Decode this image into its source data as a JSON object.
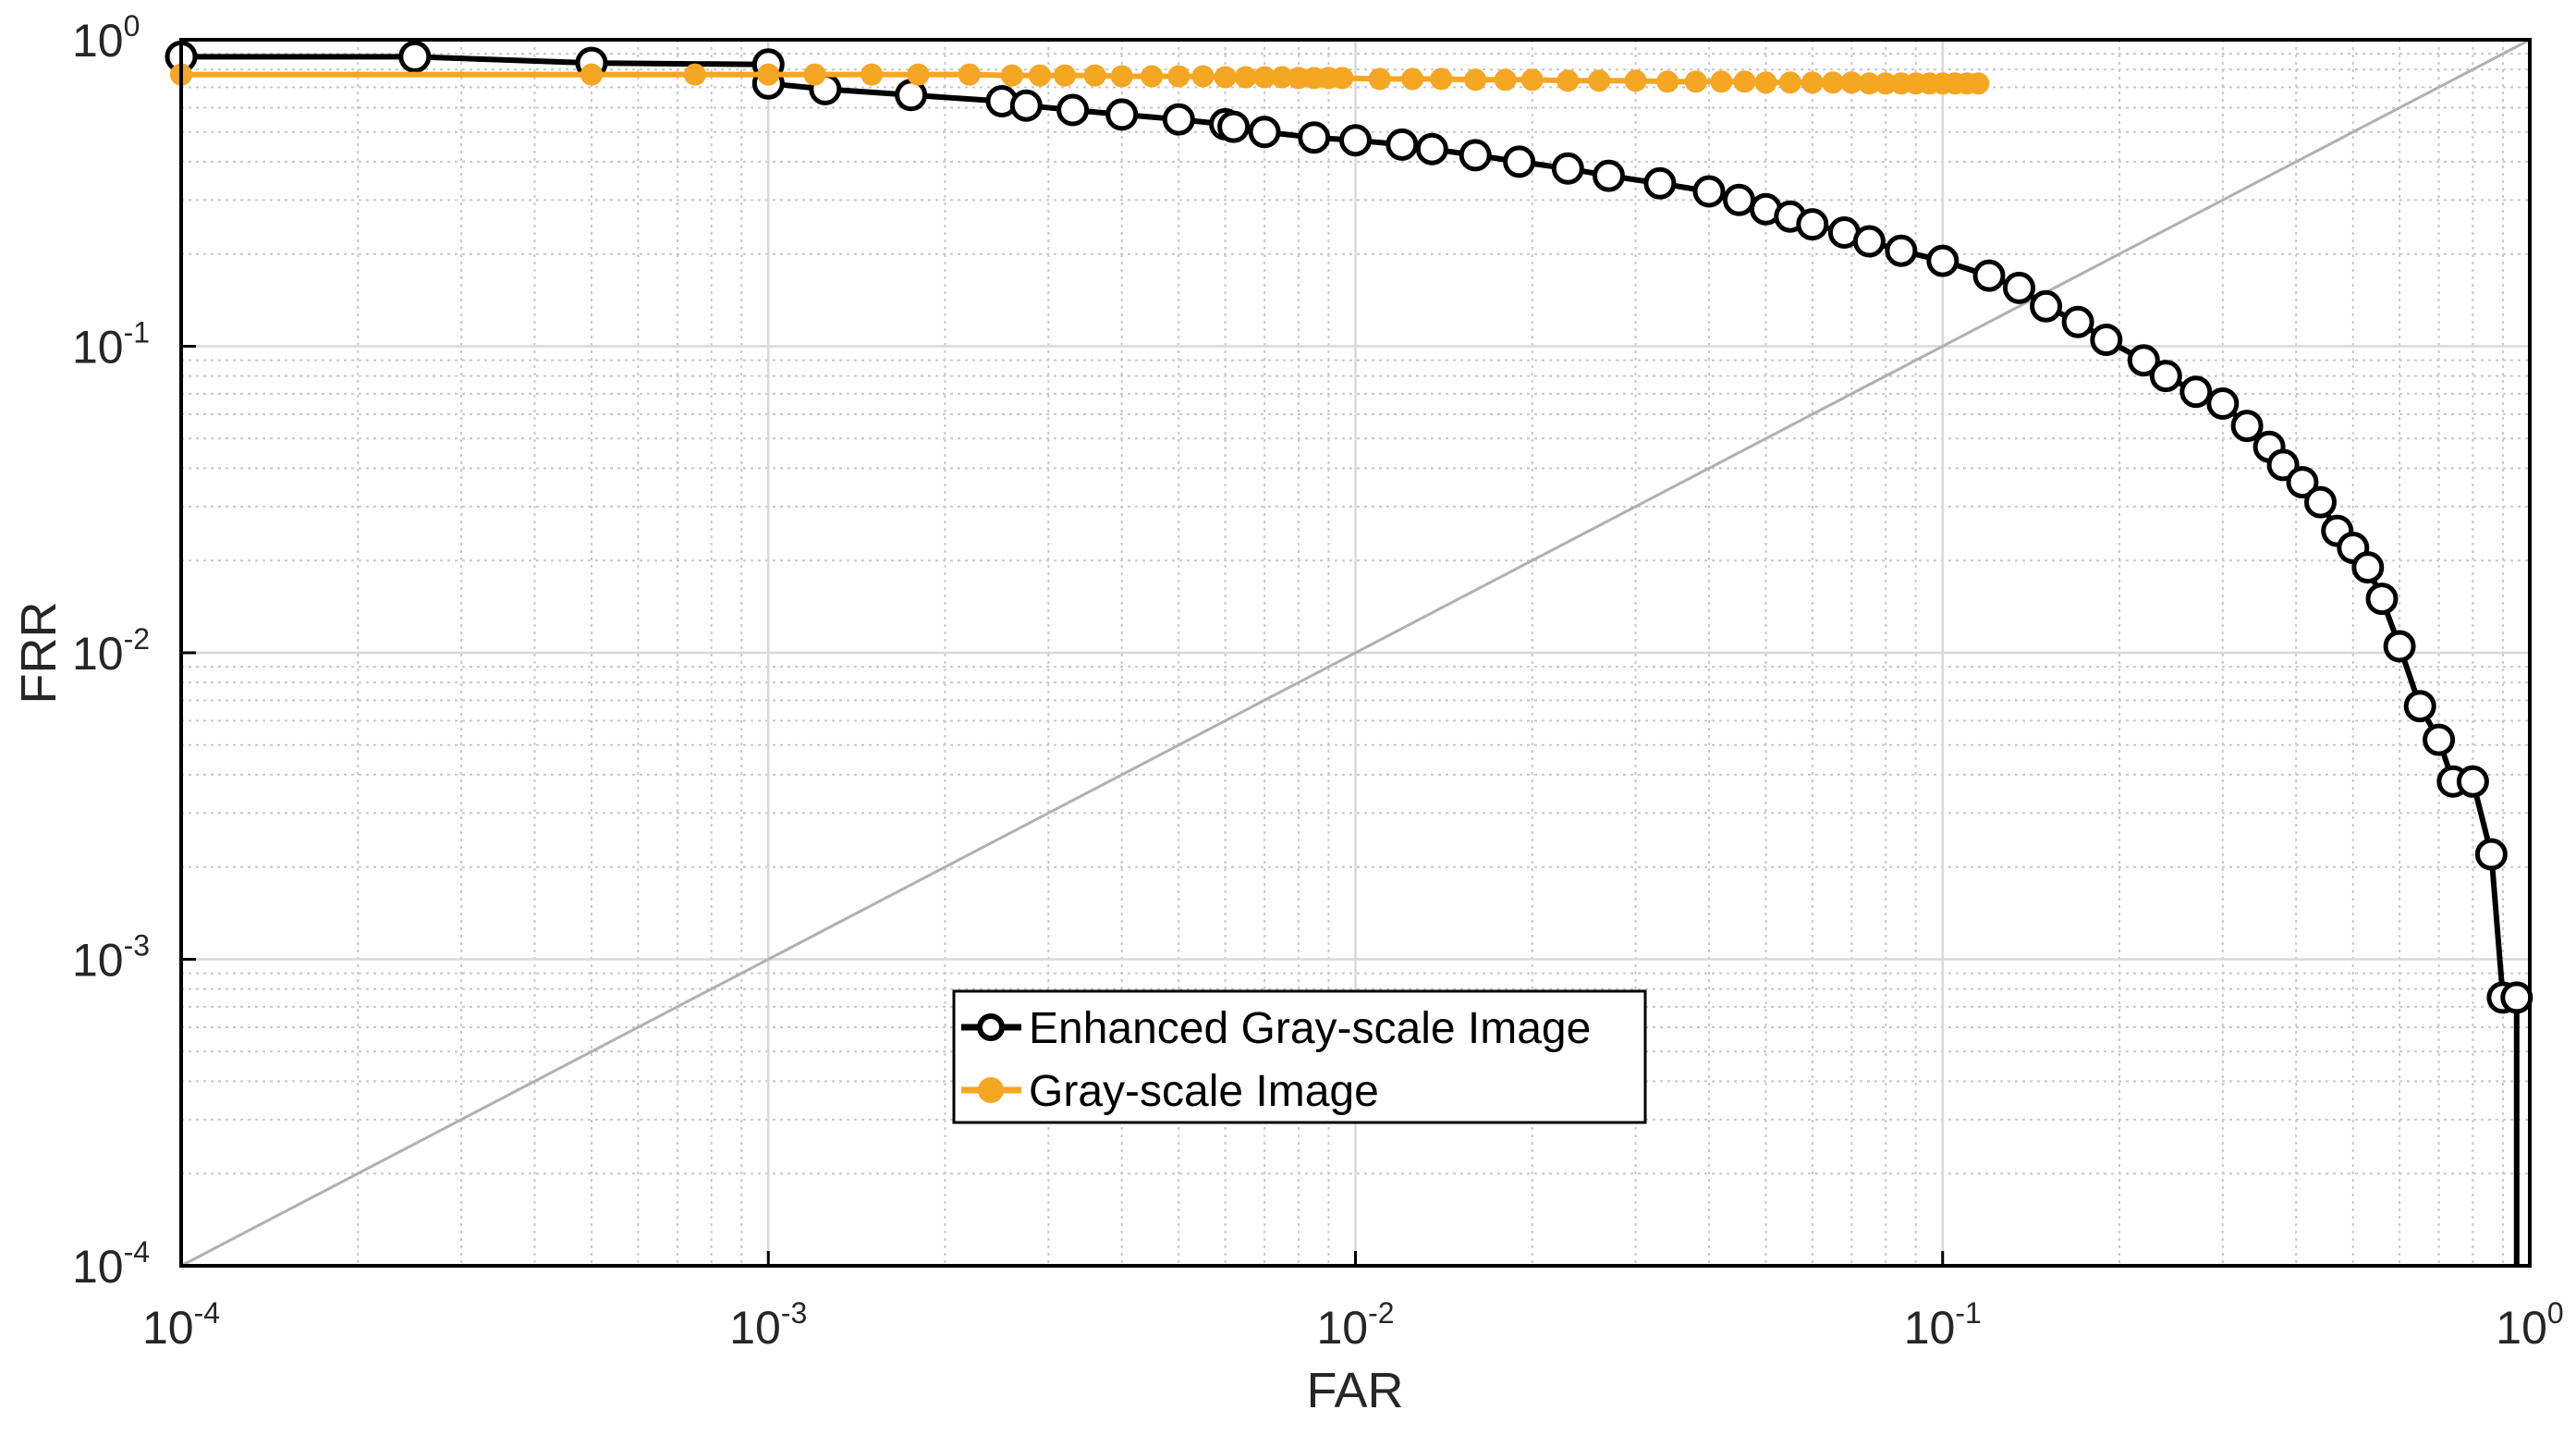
{
  "chart_data": {
    "type": "line",
    "xscale": "log",
    "yscale": "log",
    "xlim": [
      0.0001,
      1
    ],
    "ylim": [
      0.0001,
      1
    ],
    "xlabel": "FAR",
    "ylabel": "FRR",
    "grid": true,
    "legend_position": "bottom-center",
    "x_ticks": [
      {
        "base": "10",
        "exp": "-4",
        "value": 0.0001
      },
      {
        "base": "10",
        "exp": "-3",
        "value": 0.001
      },
      {
        "base": "10",
        "exp": "-2",
        "value": 0.01
      },
      {
        "base": "10",
        "exp": "-1",
        "value": 0.1
      },
      {
        "base": "10",
        "exp": "0",
        "value": 1
      }
    ],
    "y_ticks": [
      {
        "base": "10",
        "exp": "-4",
        "value": 0.0001
      },
      {
        "base": "10",
        "exp": "-3",
        "value": 0.001
      },
      {
        "base": "10",
        "exp": "-2",
        "value": 0.01
      },
      {
        "base": "10",
        "exp": "-1",
        "value": 0.1
      },
      {
        "base": "10",
        "exp": "0",
        "value": 1
      }
    ],
    "diagonal_reference": {
      "color": "#b0b0b0",
      "from": [
        0.0001,
        0.0001
      ],
      "to": [
        1,
        1
      ]
    },
    "series": [
      {
        "name": "Enhanced Gray-scale Image",
        "color": "#000000",
        "marker": "open-circle",
        "points": [
          [
            0.0001,
            0.88
          ],
          [
            0.00025,
            0.88
          ],
          [
            0.0005,
            0.84
          ],
          [
            0.001,
            0.83
          ],
          [
            0.001,
            0.72
          ],
          [
            0.00125,
            0.69
          ],
          [
            0.00175,
            0.66
          ],
          [
            0.0025,
            0.63
          ],
          [
            0.00275,
            0.61
          ],
          [
            0.0033,
            0.59
          ],
          [
            0.004,
            0.57
          ],
          [
            0.005,
            0.55
          ],
          [
            0.006,
            0.53
          ],
          [
            0.0062,
            0.52
          ],
          [
            0.007,
            0.5
          ],
          [
            0.0085,
            0.48
          ],
          [
            0.01,
            0.47
          ],
          [
            0.012,
            0.455
          ],
          [
            0.0135,
            0.44
          ],
          [
            0.016,
            0.42
          ],
          [
            0.019,
            0.4
          ],
          [
            0.023,
            0.38
          ],
          [
            0.027,
            0.36
          ],
          [
            0.033,
            0.34
          ],
          [
            0.04,
            0.32
          ],
          [
            0.045,
            0.3
          ],
          [
            0.05,
            0.28
          ],
          [
            0.055,
            0.265
          ],
          [
            0.06,
            0.25
          ],
          [
            0.068,
            0.235
          ],
          [
            0.075,
            0.22
          ],
          [
            0.085,
            0.205
          ],
          [
            0.1,
            0.19
          ],
          [
            0.12,
            0.17
          ],
          [
            0.135,
            0.155
          ],
          [
            0.15,
            0.135
          ],
          [
            0.17,
            0.12
          ],
          [
            0.19,
            0.105
          ],
          [
            0.22,
            0.09
          ],
          [
            0.24,
            0.08
          ],
          [
            0.27,
            0.071
          ],
          [
            0.3,
            0.065
          ],
          [
            0.33,
            0.055
          ],
          [
            0.36,
            0.047
          ],
          [
            0.38,
            0.041
          ],
          [
            0.41,
            0.036
          ],
          [
            0.44,
            0.031
          ],
          [
            0.47,
            0.025
          ],
          [
            0.5,
            0.022
          ],
          [
            0.53,
            0.019
          ],
          [
            0.56,
            0.015
          ],
          [
            0.6,
            0.0105
          ],
          [
            0.65,
            0.0067
          ],
          [
            0.7,
            0.0052
          ],
          [
            0.74,
            0.0038
          ],
          [
            0.8,
            0.0038
          ],
          [
            0.86,
            0.0022
          ],
          [
            0.9,
            0.00075
          ],
          [
            0.95,
            0.00075
          ],
          [
            0.95,
            0.0001
          ]
        ]
      },
      {
        "name": "Gray-scale Image",
        "color": "#f5a623",
        "marker": "filled-circle",
        "points": [
          [
            0.0001,
            0.77
          ],
          [
            0.0005,
            0.77
          ],
          [
            0.00075,
            0.77
          ],
          [
            0.001,
            0.77
          ],
          [
            0.0012,
            0.77
          ],
          [
            0.0015,
            0.77
          ],
          [
            0.0018,
            0.77
          ],
          [
            0.0022,
            0.77
          ],
          [
            0.0026,
            0.765
          ],
          [
            0.0029,
            0.765
          ],
          [
            0.0032,
            0.765
          ],
          [
            0.0036,
            0.765
          ],
          [
            0.004,
            0.76
          ],
          [
            0.0045,
            0.76
          ],
          [
            0.005,
            0.76
          ],
          [
            0.0055,
            0.76
          ],
          [
            0.006,
            0.755
          ],
          [
            0.0065,
            0.755
          ],
          [
            0.007,
            0.755
          ],
          [
            0.0075,
            0.755
          ],
          [
            0.008,
            0.75
          ],
          [
            0.0085,
            0.75
          ],
          [
            0.009,
            0.75
          ],
          [
            0.0095,
            0.75
          ],
          [
            0.011,
            0.745
          ],
          [
            0.0125,
            0.745
          ],
          [
            0.014,
            0.745
          ],
          [
            0.016,
            0.74
          ],
          [
            0.018,
            0.74
          ],
          [
            0.02,
            0.74
          ],
          [
            0.023,
            0.735
          ],
          [
            0.026,
            0.735
          ],
          [
            0.03,
            0.735
          ],
          [
            0.034,
            0.73
          ],
          [
            0.038,
            0.73
          ],
          [
            0.042,
            0.73
          ],
          [
            0.046,
            0.73
          ],
          [
            0.05,
            0.725
          ],
          [
            0.055,
            0.725
          ],
          [
            0.06,
            0.725
          ],
          [
            0.065,
            0.725
          ],
          [
            0.07,
            0.725
          ],
          [
            0.075,
            0.72
          ],
          [
            0.08,
            0.72
          ],
          [
            0.085,
            0.72
          ],
          [
            0.09,
            0.72
          ],
          [
            0.095,
            0.72
          ],
          [
            0.1,
            0.72
          ],
          [
            0.105,
            0.72
          ],
          [
            0.11,
            0.72
          ],
          [
            0.115,
            0.72
          ]
        ]
      }
    ]
  }
}
